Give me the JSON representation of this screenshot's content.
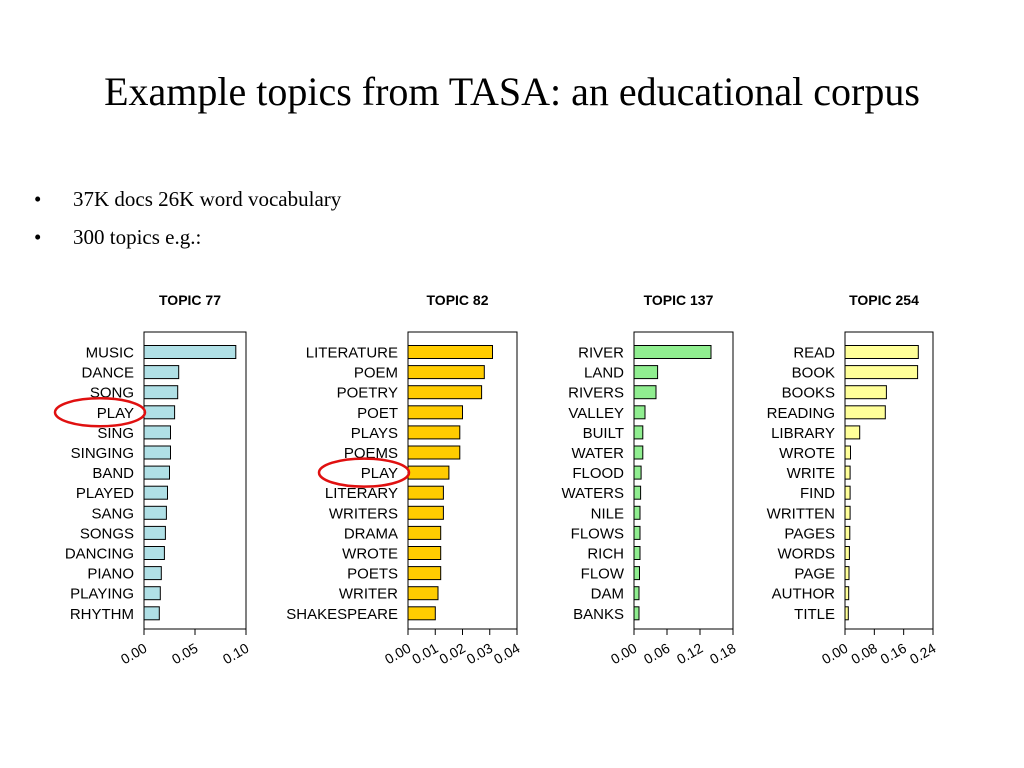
{
  "slide": {
    "title": "Example topics from TASA: an educational corpus",
    "bullets": [
      "37K docs 26K word vocabulary",
      "300 topics e.g.:"
    ],
    "bullet_symbol": "•"
  },
  "chart_data": [
    {
      "type": "bar",
      "orientation": "horizontal",
      "title": "TOPIC 77",
      "color": "#b0e0e6",
      "categories": [
        "MUSIC",
        "DANCE",
        "SONG",
        "PLAY",
        "SING",
        "SINGING",
        "BAND",
        "PLAYED",
        "SANG",
        "SONGS",
        "DANCING",
        "PIANO",
        "PLAYING",
        "RHYTHM"
      ],
      "values": [
        0.09,
        0.034,
        0.033,
        0.03,
        0.026,
        0.026,
        0.025,
        0.023,
        0.022,
        0.021,
        0.02,
        0.017,
        0.016,
        0.015
      ],
      "xlim": [
        0,
        0.1
      ],
      "ticks": [
        0.0,
        0.05,
        0.1
      ],
      "tick_labels": [
        "0.00",
        "0.05",
        "0.10"
      ],
      "highlight": "PLAY"
    },
    {
      "type": "bar",
      "orientation": "horizontal",
      "title": "TOPIC 82",
      "color": "#ffcc00",
      "categories": [
        "LITERATURE",
        "POEM",
        "POETRY",
        "POET",
        "PLAYS",
        "POEMS",
        "PLAY",
        "LITERARY",
        "WRITERS",
        "DRAMA",
        "WROTE",
        "POETS",
        "WRITER",
        "SHAKESPEARE"
      ],
      "values": [
        0.031,
        0.028,
        0.027,
        0.02,
        0.019,
        0.019,
        0.015,
        0.013,
        0.013,
        0.012,
        0.012,
        0.012,
        0.011,
        0.01
      ],
      "xlim": [
        0,
        0.04
      ],
      "ticks": [
        0.0,
        0.01,
        0.02,
        0.03,
        0.04
      ],
      "tick_labels": [
        "0.00",
        "0.01",
        "0.02",
        "0.03",
        "0.04"
      ],
      "highlight": "PLAY"
    },
    {
      "type": "bar",
      "orientation": "horizontal",
      "title": "TOPIC 137",
      "color": "#90ee90",
      "categories": [
        "RIVER",
        "LAND",
        "RIVERS",
        "VALLEY",
        "BUILT",
        "WATER",
        "FLOOD",
        "WATERS",
        "NILE",
        "FLOWS",
        "RICH",
        "FLOW",
        "DAM",
        "BANKS"
      ],
      "values": [
        0.14,
        0.043,
        0.04,
        0.02,
        0.016,
        0.016,
        0.013,
        0.012,
        0.011,
        0.011,
        0.011,
        0.01,
        0.009,
        0.009
      ],
      "xlim": [
        0,
        0.18
      ],
      "ticks": [
        0.0,
        0.06,
        0.12,
        0.18
      ],
      "tick_labels": [
        "0.00",
        "0.06",
        "0.12",
        "0.18"
      ]
    },
    {
      "type": "bar",
      "orientation": "horizontal",
      "title": "TOPIC 254",
      "color": "#ffff99",
      "categories": [
        "READ",
        "BOOK",
        "BOOKS",
        "READING",
        "LIBRARY",
        "WROTE",
        "WRITE",
        "FIND",
        "WRITTEN",
        "PAGES",
        "WORDS",
        "PAGE",
        "AUTHOR",
        "TITLE"
      ],
      "values": [
        0.2,
        0.198,
        0.113,
        0.11,
        0.04,
        0.015,
        0.014,
        0.014,
        0.014,
        0.013,
        0.012,
        0.011,
        0.01,
        0.009
      ],
      "xlim": [
        0,
        0.24
      ],
      "ticks": [
        0.0,
        0.08,
        0.16,
        0.24
      ],
      "tick_labels": [
        "0.00",
        "0.08",
        "0.16",
        "0.24"
      ]
    }
  ]
}
